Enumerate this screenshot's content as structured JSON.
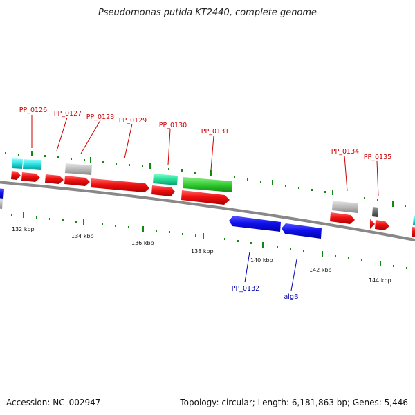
{
  "title": "Pseudomonas putida KT2440, complete genome",
  "footer": {
    "accession": "Accession: NC_002947",
    "summary": "Topology: circular; Length: 6,181,863 bp; Genes: 5,446"
  },
  "colors": {
    "backbone": "#888888",
    "cds": "#ee1111",
    "gene_gray": "#bbbbbb",
    "gene_cyan": "#22dddd",
    "gene_teal": "#22ddaa",
    "gene_green": "#33cc33",
    "gene_blue": "#1111ee",
    "tick": "#118811",
    "label_top": "#cc0000",
    "label_bottom": "#0000aa"
  },
  "scale_labels": [
    "132 kbp",
    "134 kbp",
    "136 kbp",
    "138 kbp",
    "140 kbp",
    "142 kbp",
    "144 kbp"
  ],
  "top_gene_labels": [
    "PP_0126",
    "PP_0127",
    "PP_0128",
    "PP_0129",
    "PP_0130",
    "PP_0131",
    "PP_0134",
    "PP_0135"
  ],
  "bottom_gene_labels": [
    "PP_0132",
    "algB"
  ]
}
